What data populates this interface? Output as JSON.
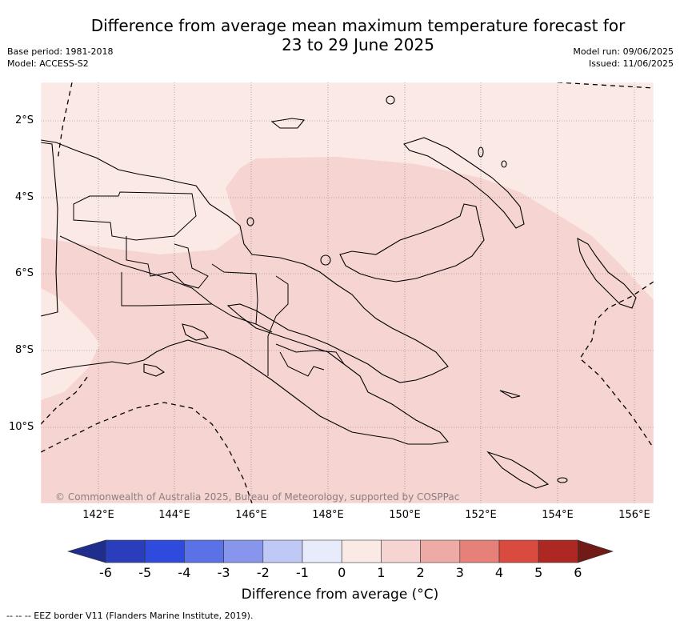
{
  "header": {
    "title_line1": "Difference from average mean maximum temperature forecast for",
    "title_line2": "23 to 29 June 2025",
    "base_period": "Base period: 1981-2018",
    "model": "Model: ACCESS-S2",
    "model_run": "Model run: 09/06/2025",
    "issued": "Issued: 11/06/2025"
  },
  "map": {
    "region": "Papua New Guinea",
    "lat_labels": [
      "2°S",
      "4°S",
      "6°S",
      "8°S",
      "10°S"
    ],
    "lon_labels": [
      "142°E",
      "144°E",
      "146°E",
      "148°E",
      "150°E",
      "152°E",
      "154°E",
      "156°E"
    ],
    "copyright": "© Commonwealth of Australia 2025, Bureau of Meteorology, supported by COSPPac",
    "fill_colors": {
      "zero_to_one": "#fbe9e6",
      "one_to_two": "#f5d4d1"
    }
  },
  "colorbar": {
    "title": "Difference from average (°C)",
    "ticks": [
      "-6",
      "-5",
      "-4",
      "-3",
      "-2",
      "-1",
      "0",
      "1",
      "2",
      "3",
      "4",
      "5",
      "6"
    ],
    "colors": [
      "#1f2e8c",
      "#2a3ebb",
      "#2e4bde",
      "#5a72e6",
      "#8796ec",
      "#c0c8f5",
      "#e7ebfb",
      "#fbe9e6",
      "#f5d4d1",
      "#eeaba6",
      "#e6817a",
      "#d94a3f",
      "#ad2822",
      "#701b16"
    ]
  },
  "footer": {
    "eez_note": "-- -- -- EEZ border V11 (Flanders Marine Institute, 2019)."
  }
}
